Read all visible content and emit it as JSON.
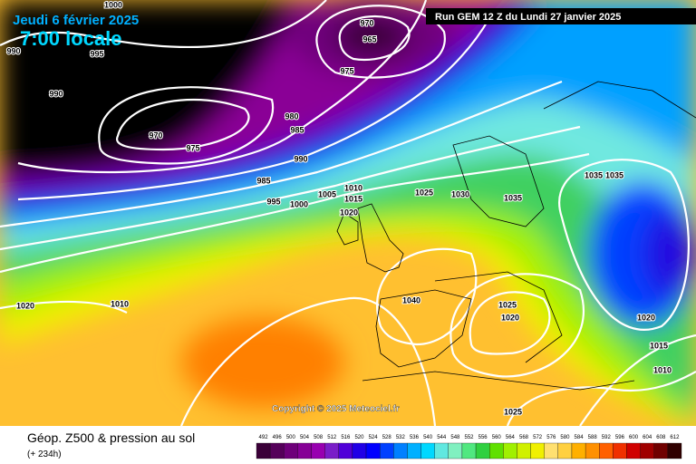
{
  "header": {
    "date": "Jeudi 6 février 2025",
    "time": "7:00 locale",
    "run": "Run GEM 12 Z du Lundi 27 janvier 2025"
  },
  "footer": {
    "title": "Géop. Z500 & pression au sol",
    "lead": "(+ 234h)",
    "copyright": "Copyright © 2025 Meteociel.fr"
  },
  "isobar_labels": [
    1000,
    990,
    995,
    990,
    970,
    965,
    975,
    970,
    975,
    980,
    985,
    990,
    985,
    995,
    1000,
    1005,
    1010,
    1015,
    1020,
    1025,
    1030,
    1035,
    1035,
    1035,
    1010,
    1020,
    1040,
    1025,
    1020,
    1020,
    1015,
    1010,
    1025
  ],
  "color_scale": [
    {
      "value": 492,
      "color": "#3a0038"
    },
    {
      "value": 496,
      "color": "#55005a"
    },
    {
      "value": 500,
      "color": "#6e007a"
    },
    {
      "value": 504,
      "color": "#860096"
    },
    {
      "value": 508,
      "color": "#9800b0"
    },
    {
      "value": 512,
      "color": "#7a1ec8"
    },
    {
      "value": 516,
      "color": "#5000d8"
    },
    {
      "value": 520,
      "color": "#2000e6"
    },
    {
      "value": 524,
      "color": "#0000ff"
    },
    {
      "value": 528,
      "color": "#0040ff"
    },
    {
      "value": 532,
      "color": "#0080ff"
    },
    {
      "value": 536,
      "color": "#00b0ff"
    },
    {
      "value": 540,
      "color": "#00d8ff"
    },
    {
      "value": 544,
      "color": "#60e8e0"
    },
    {
      "value": 548,
      "color": "#80f0c0"
    },
    {
      "value": 552,
      "color": "#50e880"
    },
    {
      "value": 556,
      "color": "#30d040"
    },
    {
      "value": 560,
      "color": "#60e000"
    },
    {
      "value": 564,
      "color": "#a0f000"
    },
    {
      "value": 568,
      "color": "#d0f000"
    },
    {
      "value": 572,
      "color": "#f0f000"
    },
    {
      "value": 576,
      "color": "#ffe070"
    },
    {
      "value": 580,
      "color": "#ffd040"
    },
    {
      "value": 584,
      "color": "#ffb000"
    },
    {
      "value": 588,
      "color": "#ff9000"
    },
    {
      "value": 592,
      "color": "#ff6000"
    },
    {
      "value": 596,
      "color": "#f03000"
    },
    {
      "value": 600,
      "color": "#d00000"
    },
    {
      "value": 604,
      "color": "#a00000"
    },
    {
      "value": 608,
      "color": "#700000"
    },
    {
      "value": 612,
      "color": "#300000"
    }
  ]
}
